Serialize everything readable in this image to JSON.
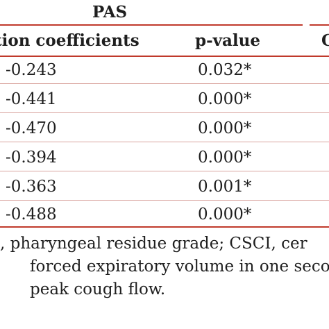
{
  "table": {
    "group_title": "PAS",
    "group_title_right_partial": "C",
    "headers": {
      "coefficients": "tion coefficients",
      "pvalue": "p-value"
    },
    "rows": [
      {
        "coef": "-0.243",
        "p": "0.032*"
      },
      {
        "coef": "-0.441",
        "p": "0.000*"
      },
      {
        "coef": "-0.470",
        "p": "0.000*"
      },
      {
        "coef": "-0.394",
        "p": "0.000*"
      },
      {
        "coef": "-0.363",
        "p": "0.001*"
      },
      {
        "coef": "-0.488",
        "p": "0.000*"
      }
    ]
  },
  "footnote": {
    "line1": ", pharyngeal residue grade; CSCI, cer",
    "line2": "forced expiratory volume in one seco",
    "line3": "peak cough flow."
  },
  "colors": {
    "rule": "#c0392b",
    "text": "#1f1f1f"
  }
}
